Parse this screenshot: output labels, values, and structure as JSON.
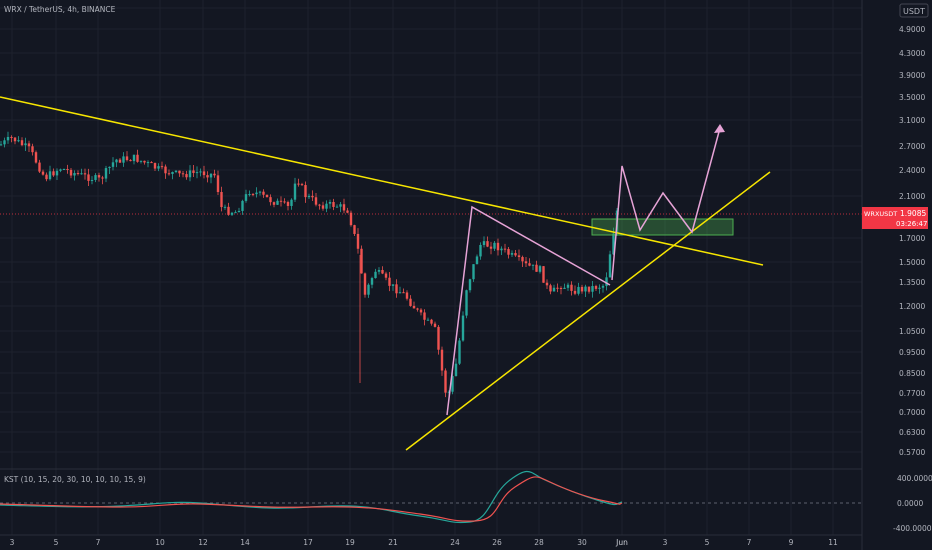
{
  "header": {
    "symbol_label": "WRX / TetherUS, 4h, BINANCE"
  },
  "price_axis": {
    "currency_label": "USDT",
    "ticks": [
      "5.",
      "4.9000",
      "4.3000",
      "3.9000",
      "3.5000",
      "3.1000",
      "2.7000",
      "2.4000",
      "2.1000",
      "1.7000",
      "1.5000",
      "1.3500",
      "1.2000",
      "1.0500",
      "0.9500",
      "0.8500",
      "0.7700",
      "0.7000",
      "0.6300",
      "0.5700"
    ]
  },
  "price_label": {
    "ticker": "WRXUSDT",
    "price": "1.9085",
    "countdown": "03:26:47",
    "color": "#f23645"
  },
  "indicator": {
    "name": "KST (10, 15, 20, 30, 10, 10, 10, 15, 9)",
    "ticks": [
      "400.0000",
      "0.0000",
      "-400.0000"
    ]
  },
  "time_axis": {
    "ticks": [
      "3",
      "5",
      "7",
      "10",
      "12",
      "14",
      "17",
      "19",
      "21",
      "24",
      "26",
      "28",
      "30",
      "Jun",
      "3",
      "5",
      "7",
      "9",
      "11"
    ]
  },
  "colors": {
    "background": "#131722",
    "up_candle": "#26a69a",
    "down_candle": "#ef5350",
    "trendline": "#f7e600",
    "pattern": "#e6a3d6",
    "zone": "#4caf50"
  },
  "chart_data": {
    "type": "candlestick",
    "symbol": "WRX / TetherUS",
    "interval": "4h",
    "current_price": 1.9085,
    "approx_close_path": [
      {
        "date": "May 3",
        "close": 2.85
      },
      {
        "date": "May 5",
        "close": 2.35
      },
      {
        "date": "May 7",
        "close": 2.45
      },
      {
        "date": "May 10",
        "close": 2.55
      },
      {
        "date": "May 12",
        "close": 2.35
      },
      {
        "date": "May 14",
        "close": 2.3
      },
      {
        "date": "May 15",
        "close": 1.85
      },
      {
        "date": "May 17",
        "close": 2.15
      },
      {
        "date": "May 19",
        "close": 2.0
      },
      {
        "date": "May 20",
        "close": 1.3
      },
      {
        "date": "May 21",
        "close": 1.4
      },
      {
        "date": "May 23",
        "close": 1.05
      },
      {
        "date": "May 24",
        "close": 0.7
      },
      {
        "date": "May 25",
        "close": 1.6
      },
      {
        "date": "May 26",
        "close": 1.55
      },
      {
        "date": "May 28",
        "close": 1.45
      },
      {
        "date": "May 29",
        "close": 1.3
      },
      {
        "date": "May 30",
        "close": 1.35
      },
      {
        "date": "May 31",
        "close": 1.9
      }
    ]
  }
}
